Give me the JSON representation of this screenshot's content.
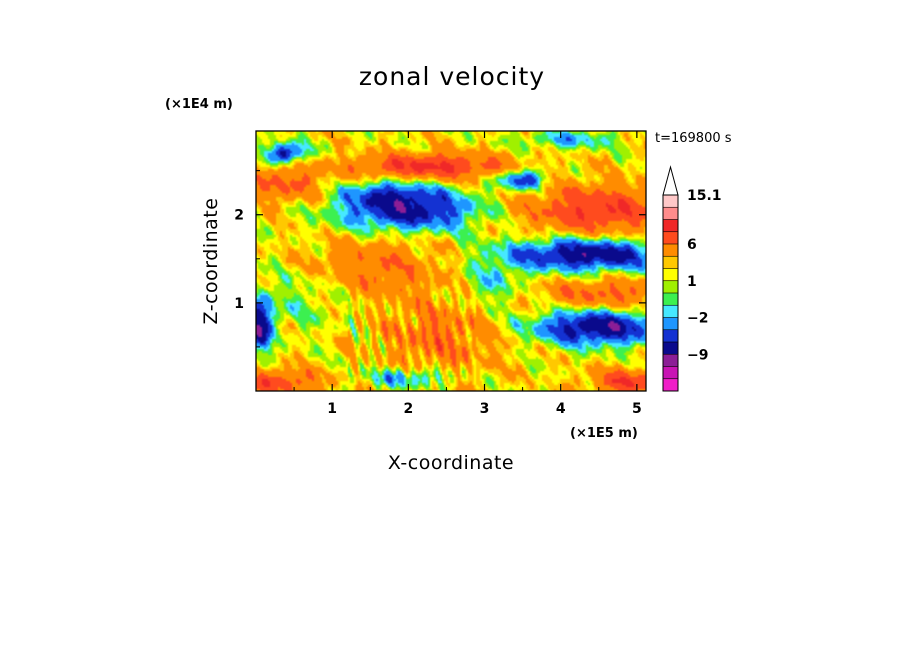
{
  "chart_data": {
    "type": "heatmap",
    "title": "zonal velocity",
    "xlabel": "X-coordinate",
    "ylabel": "Z-coordinate",
    "x_scale_label": "(×1E5 m)",
    "y_scale_label": "(×1E4 m)",
    "time_stamp": "t=169800 s",
    "xlim": [
      0,
      5.12
    ],
    "ylim": [
      0,
      2.95
    ],
    "x_ticks": [
      1,
      2,
      3,
      4,
      5
    ],
    "x_tick_labels": [
      "1",
      "2",
      "3",
      "4",
      "5"
    ],
    "y_ticks": [
      1,
      2
    ],
    "y_tick_labels": [
      "1",
      "2"
    ],
    "colorbar": {
      "levels": [
        -15,
        -12,
        -9,
        -6,
        -4,
        -2,
        -1,
        0,
        1,
        2,
        3,
        6,
        9,
        12,
        15.1
      ],
      "colors": [
        "#f01ec8",
        "#c814b4",
        "#8c1e96",
        "#0a0a8c",
        "#1432d2",
        "#1e96ff",
        "#46e8ff",
        "#3cf050",
        "#a0f000",
        "#ffff00",
        "#ffc800",
        "#ff8c00",
        "#ff4b1e",
        "#f02828",
        "#ff8c8c",
        "#ffc8c8"
      ],
      "labeled_values": [
        "15.1",
        "6",
        "1",
        "−2",
        "−9"
      ],
      "extend_max": true
    },
    "field_features": [
      {
        "type": "negative",
        "x": 2.0,
        "z": 2.05,
        "amp": -9,
        "sx": 0.65,
        "sz": 0.17
      },
      {
        "type": "negative",
        "x": 1.7,
        "z": 2.25,
        "amp": -4,
        "sx": 0.4,
        "sz": 0.1
      },
      {
        "type": "positive",
        "x": 2.3,
        "z": 2.55,
        "amp": 8,
        "sx": 0.7,
        "sz": 0.1
      },
      {
        "type": "negative",
        "x": 4.35,
        "z": 1.55,
        "amp": -10,
        "sx": 0.75,
        "sz": 0.13
      },
      {
        "type": "negative",
        "x": 4.5,
        "z": 0.72,
        "amp": -10,
        "sx": 0.6,
        "sz": 0.14
      },
      {
        "type": "positive",
        "x": 4.5,
        "z": 2.05,
        "amp": 7,
        "sx": 0.7,
        "sz": 0.2
      },
      {
        "type": "positive",
        "x": 4.6,
        "z": 1.1,
        "amp": 5,
        "sx": 0.6,
        "sz": 0.12
      },
      {
        "type": "negative",
        "x": 0.05,
        "z": 0.75,
        "amp": -10,
        "sx": 0.12,
        "sz": 0.2
      },
      {
        "type": "negative",
        "x": 0.4,
        "z": 2.7,
        "amp": -9,
        "sx": 0.18,
        "sz": 0.08
      },
      {
        "type": "negative",
        "x": 3.5,
        "z": 2.4,
        "amp": -8,
        "sx": 0.22,
        "sz": 0.08
      },
      {
        "type": "negative",
        "x": 4.1,
        "z": 2.85,
        "amp": -4,
        "sx": 0.45,
        "sz": 0.07
      },
      {
        "type": "positive",
        "x": 1.6,
        "z": 1.4,
        "amp": 4,
        "sx": 0.6,
        "sz": 0.25
      },
      {
        "type": "positive",
        "x": 2.4,
        "z": 0.6,
        "amp": 4,
        "sx": 0.55,
        "sz": 0.3
      },
      {
        "type": "positive",
        "x": 0.3,
        "z": 0.1,
        "amp": 6,
        "sx": 0.4,
        "sz": 0.1
      },
      {
        "type": "positive",
        "x": 4.9,
        "z": 0.1,
        "amp": 7,
        "sx": 0.35,
        "sz": 0.1
      },
      {
        "type": "positive",
        "x": 0.4,
        "z": 2.35,
        "amp": 5,
        "sx": 0.35,
        "sz": 0.15
      },
      {
        "type": "negative",
        "x": 0.6,
        "z": 1.05,
        "amp": -2,
        "sx": 0.5,
        "sz": 0.25
      },
      {
        "type": "negative",
        "x": 3.1,
        "z": 1.2,
        "amp": -3,
        "sx": 0.3,
        "sz": 0.2
      },
      {
        "type": "negative",
        "x": 2.0,
        "z": 0.15,
        "amp": -5,
        "sx": 0.4,
        "sz": 0.08
      }
    ]
  }
}
